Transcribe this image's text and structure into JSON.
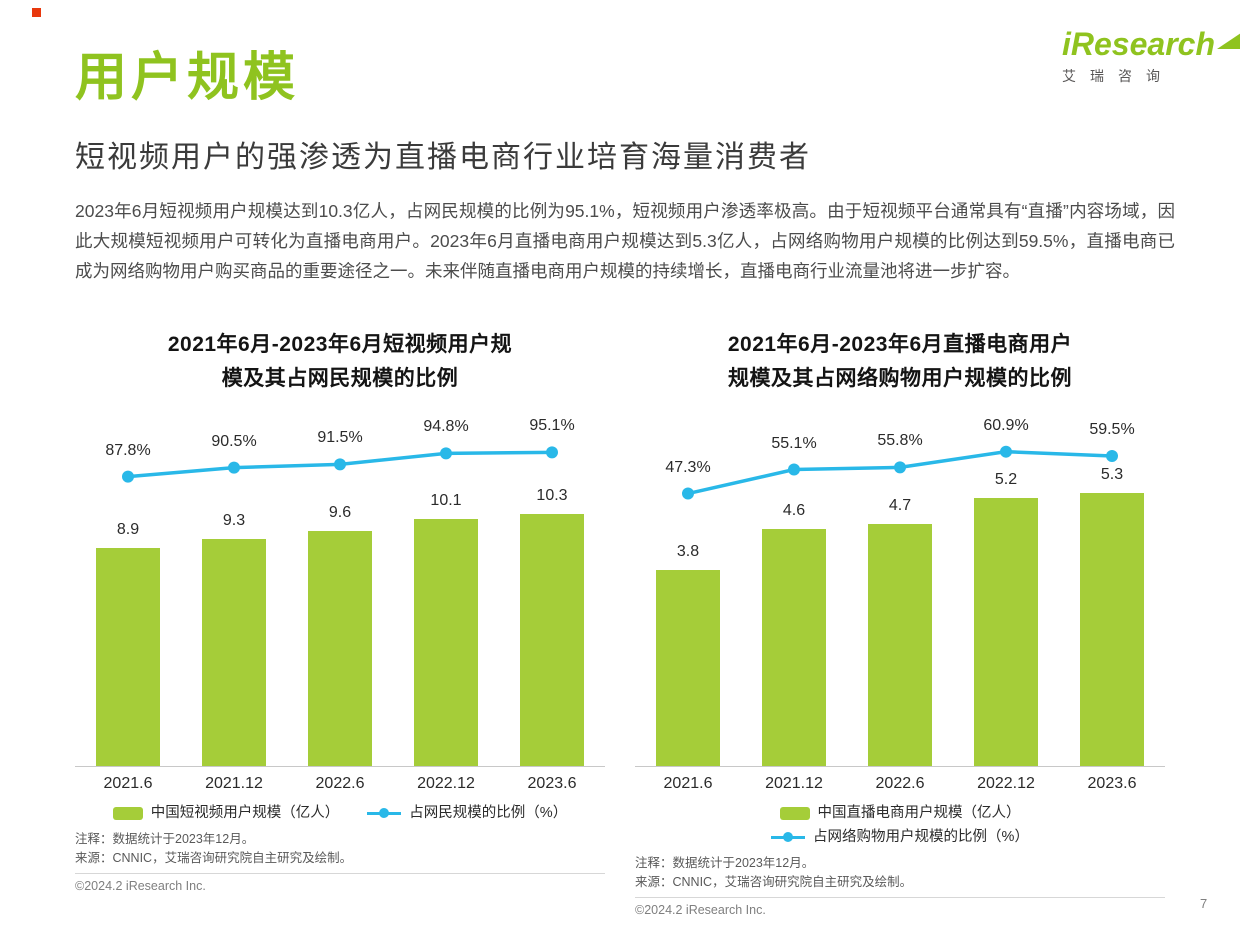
{
  "page": {
    "title": "用户规模",
    "subtitle": "短视频用户的强渗透为直播电商行业培育海量消费者",
    "body": "2023年6月短视频用户规模达到10.3亿人，占网民规模的比例为95.1%，短视频用户渗透率极高。由于短视频平台通常具有“直播”内容场域，因此大规模短视频用户可转化为直播电商用户。2023年6月直播电商用户规模达到5.3亿人，占网络购物用户规模的比例达到59.5%，直播电商已成为网络购物用户购买商品的重要途径之一。未来伴随直播电商用户规模的持续增长，直播电商行业流量池将进一步扩容。",
    "page_number": "7",
    "logo": {
      "brand": "iResearch",
      "brand_cn": "艾瑞咨询"
    }
  },
  "colors": {
    "brand_green": "#8fc31f",
    "bar_green": "#a5cd39",
    "line_cyan": "#29b8e8",
    "corner_red": "#e8380d"
  },
  "chart_data": [
    {
      "type": "bar+line",
      "title": "2021年6月-2023年6月短视频用户规模及其占网民规模的比例",
      "title_lines": [
        "2021年6月-2023年6月短视频用户规",
        "模及其占网民规模的比例"
      ],
      "categories": [
        "2021.6",
        "2021.12",
        "2022.6",
        "2022.12",
        "2023.6"
      ],
      "series": [
        {
          "name": "中国短视频用户规模（亿人）",
          "type": "bar",
          "values": [
            8.9,
            9.3,
            9.6,
            10.1,
            10.3
          ]
        },
        {
          "name": "占网民规模的比例（%）",
          "type": "line",
          "values": [
            87.8,
            90.5,
            91.5,
            94.8,
            95.1
          ]
        }
      ],
      "bar_ylim": [
        0,
        13.5
      ],
      "line_ylim": [
        76,
        100
      ],
      "grid": false,
      "legend_position": "bottom",
      "legend_layout": "row",
      "note1": "注释：数据统计于2023年12月。",
      "note2": "来源：CNNIC，艾瑞咨询研究院自主研究及绘制。",
      "footer": "©2024.2 iResearch Inc."
    },
    {
      "type": "bar+line",
      "title": "2021年6月-2023年6月直播电商用户规模及其占网络购物用户规模的比例",
      "title_lines": [
        "2021年6月-2023年6月直播电商用户",
        "规模及其占网络购物用户规模的比例"
      ],
      "categories": [
        "2021.6",
        "2021.12",
        "2022.6",
        "2022.12",
        "2023.6"
      ],
      "series": [
        {
          "name": "中国直播电商用户规模（亿人）",
          "type": "bar",
          "values": [
            3.8,
            4.6,
            4.7,
            5.2,
            5.3
          ]
        },
        {
          "name": "占网络购物用户规模的比例（%）",
          "type": "line",
          "values": [
            47.3,
            55.1,
            55.8,
            60.9,
            59.5
          ]
        }
      ],
      "bar_ylim": [
        0,
        6.4
      ],
      "line_ylim": [
        40,
        66
      ],
      "grid": false,
      "legend_position": "bottom",
      "legend_layout": "stack",
      "note1": "注释：数据统计于2023年12月。",
      "note2": "来源：CNNIC，艾瑞咨询研究院自主研究及绘制。",
      "footer": "©2024.2 iResearch Inc."
    }
  ]
}
